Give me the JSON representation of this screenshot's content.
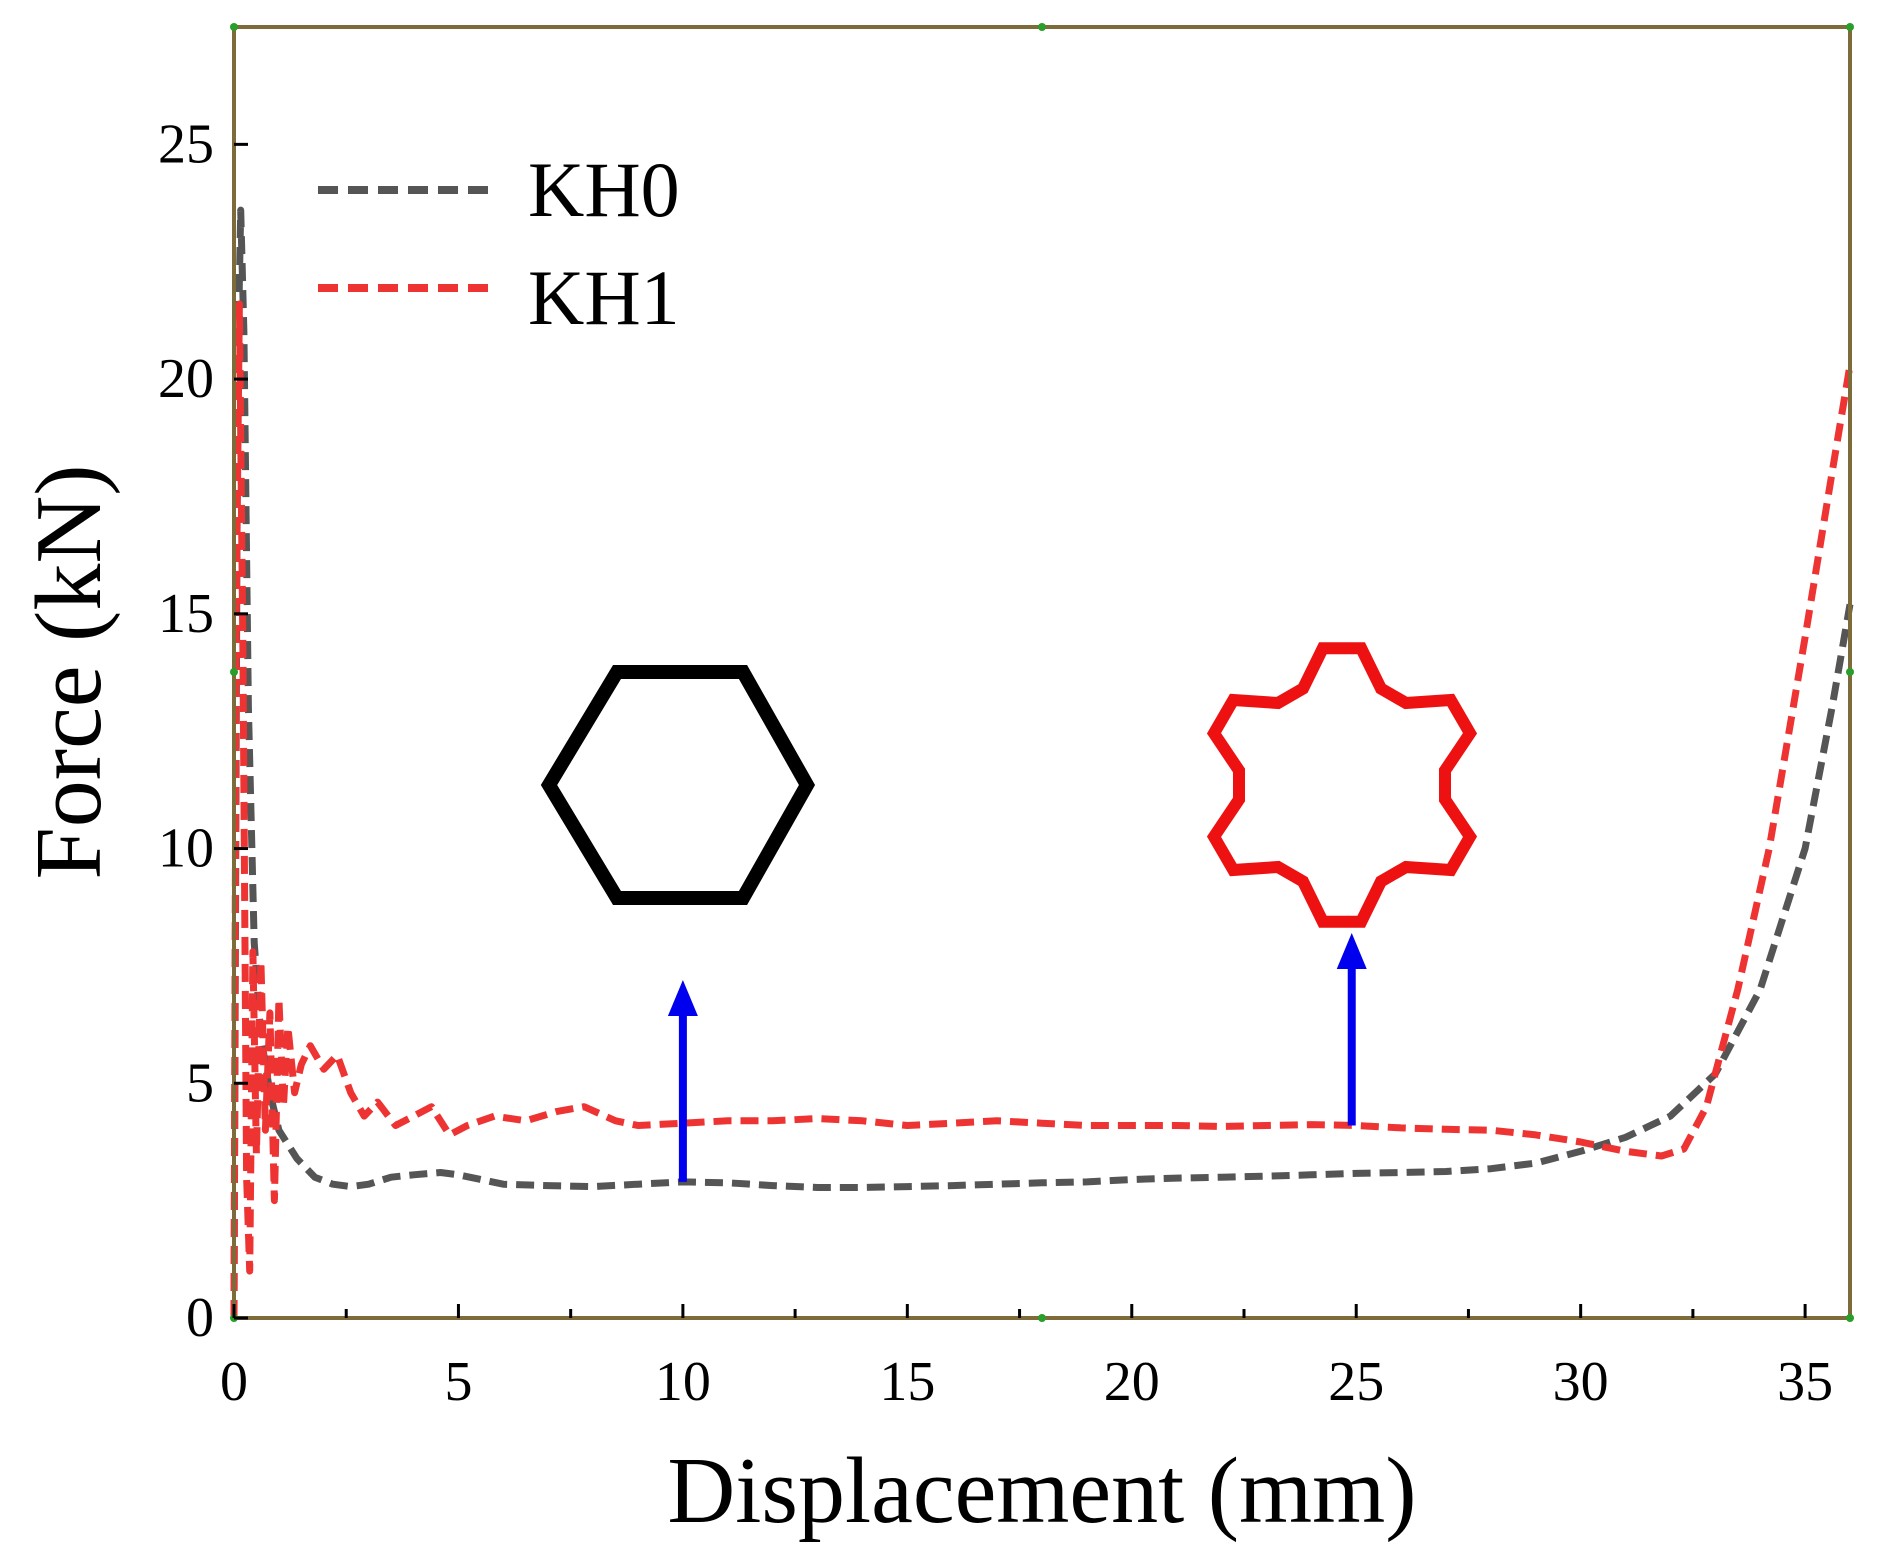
{
  "chart_data": {
    "type": "line",
    "title": "",
    "xlabel": "Displacement (mm)",
    "ylabel": "Force (kN)",
    "xlim": [
      0,
      36
    ],
    "ylim": [
      0,
      27.5
    ],
    "x_ticks": [
      0,
      5,
      10,
      15,
      20,
      25,
      30,
      35
    ],
    "y_ticks": [
      0,
      5,
      10,
      15,
      20,
      25
    ],
    "legend_position": "top-left",
    "series": [
      {
        "name": "KH0",
        "color": "#555555",
        "style": "dashed",
        "points": [
          [
            0,
            0
          ],
          [
            0.08,
            20.0
          ],
          [
            0.15,
            23.6
          ],
          [
            0.22,
            21.0
          ],
          [
            0.32,
            13.0
          ],
          [
            0.45,
            8.0
          ],
          [
            0.6,
            6.0
          ],
          [
            0.8,
            4.8
          ],
          [
            1.0,
            4.0
          ],
          [
            1.4,
            3.4
          ],
          [
            1.8,
            3.0
          ],
          [
            2.2,
            2.85
          ],
          [
            2.6,
            2.8
          ],
          [
            3.0,
            2.85
          ],
          [
            3.5,
            3.0
          ],
          [
            4.0,
            3.05
          ],
          [
            4.6,
            3.1
          ],
          [
            5.0,
            3.05
          ],
          [
            6.0,
            2.85
          ],
          [
            7.0,
            2.82
          ],
          [
            8.0,
            2.8
          ],
          [
            9.0,
            2.85
          ],
          [
            10.0,
            2.9
          ],
          [
            11.0,
            2.88
          ],
          [
            12.0,
            2.82
          ],
          [
            13.0,
            2.78
          ],
          [
            14.0,
            2.78
          ],
          [
            15.0,
            2.8
          ],
          [
            16.0,
            2.82
          ],
          [
            17.0,
            2.85
          ],
          [
            18.0,
            2.88
          ],
          [
            19.0,
            2.9
          ],
          [
            20.0,
            2.95
          ],
          [
            21.0,
            2.98
          ],
          [
            22.0,
            3.0
          ],
          [
            23.0,
            3.02
          ],
          [
            24.0,
            3.05
          ],
          [
            25.0,
            3.08
          ],
          [
            26.0,
            3.1
          ],
          [
            27.0,
            3.12
          ],
          [
            28.0,
            3.18
          ],
          [
            29.0,
            3.3
          ],
          [
            30.0,
            3.55
          ],
          [
            31.0,
            3.85
          ],
          [
            32.0,
            4.3
          ],
          [
            33.0,
            5.2
          ],
          [
            34.0,
            7.0
          ],
          [
            35.0,
            10.0
          ],
          [
            35.6,
            13.0
          ],
          [
            36.0,
            15.2
          ]
        ]
      },
      {
        "name": "KH1",
        "color": "#ee3333",
        "style": "dashed",
        "points": [
          [
            0,
            0
          ],
          [
            0.05,
            15.0
          ],
          [
            0.12,
            21.6
          ],
          [
            0.2,
            14.0
          ],
          [
            0.28,
            3.0
          ],
          [
            0.35,
            1.0
          ],
          [
            0.42,
            7.8
          ],
          [
            0.5,
            3.5
          ],
          [
            0.6,
            7.6
          ],
          [
            0.7,
            4.0
          ],
          [
            0.8,
            6.5
          ],
          [
            0.9,
            2.5
          ],
          [
            1.0,
            6.8
          ],
          [
            1.1,
            4.5
          ],
          [
            1.2,
            6.2
          ],
          [
            1.35,
            4.8
          ],
          [
            1.5,
            5.4
          ],
          [
            1.7,
            5.8
          ],
          [
            2.0,
            5.3
          ],
          [
            2.3,
            5.6
          ],
          [
            2.6,
            4.8
          ],
          [
            2.9,
            4.3
          ],
          [
            3.2,
            4.6
          ],
          [
            3.6,
            4.1
          ],
          [
            4.0,
            4.3
          ],
          [
            4.4,
            4.5
          ],
          [
            4.8,
            3.9
          ],
          [
            5.2,
            4.1
          ],
          [
            5.8,
            4.3
          ],
          [
            6.5,
            4.2
          ],
          [
            7.2,
            4.4
          ],
          [
            7.8,
            4.5
          ],
          [
            8.5,
            4.2
          ],
          [
            9.0,
            4.1
          ],
          [
            10.0,
            4.15
          ],
          [
            11.0,
            4.2
          ],
          [
            12.0,
            4.2
          ],
          [
            13.0,
            4.25
          ],
          [
            14.0,
            4.2
          ],
          [
            15.0,
            4.1
          ],
          [
            16.0,
            4.15
          ],
          [
            17.0,
            4.2
          ],
          [
            18.0,
            4.15
          ],
          [
            19.0,
            4.1
          ],
          [
            20.0,
            4.1
          ],
          [
            21.0,
            4.1
          ],
          [
            22.0,
            4.08
          ],
          [
            23.0,
            4.1
          ],
          [
            24.0,
            4.12
          ],
          [
            25.0,
            4.1
          ],
          [
            26.0,
            4.05
          ],
          [
            27.0,
            4.02
          ],
          [
            28.0,
            4.0
          ],
          [
            29.0,
            3.9
          ],
          [
            30.0,
            3.75
          ],
          [
            31.0,
            3.55
          ],
          [
            31.8,
            3.45
          ],
          [
            32.3,
            3.6
          ],
          [
            32.8,
            4.5
          ],
          [
            33.5,
            7.0
          ],
          [
            34.2,
            10.0
          ],
          [
            35.0,
            14.5
          ],
          [
            35.6,
            18.0
          ],
          [
            36.0,
            20.3
          ]
        ]
      }
    ],
    "annotations": [
      {
        "type": "arrow",
        "color": "#0000ee",
        "x": 10,
        "y_from": 2.9,
        "y_to": 7.2
      },
      {
        "type": "arrow",
        "color": "#0000ee",
        "x": 24.9,
        "y_from": 4.1,
        "y_to": 8.2
      },
      {
        "type": "shape",
        "shape": "hexagon",
        "label_for": "KH0",
        "color": "#000000"
      },
      {
        "type": "shape",
        "shape": "star-hexagon",
        "label_for": "KH1",
        "color": "#ee1111"
      }
    ]
  }
}
